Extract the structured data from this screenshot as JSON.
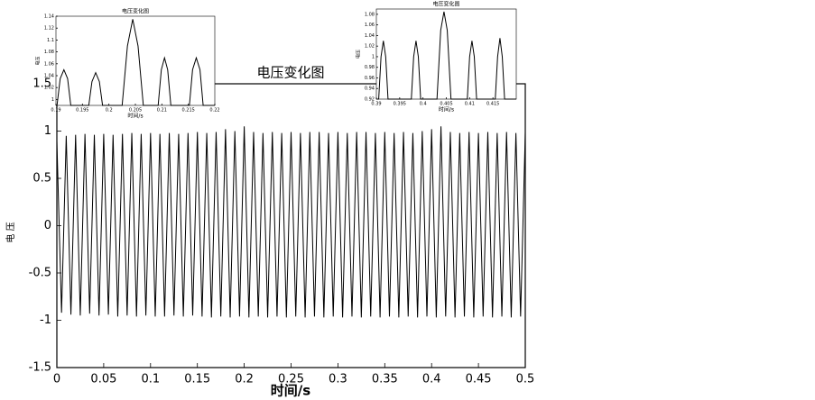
{
  "chart_data": [
    {
      "type": "line",
      "title": "电压变化图",
      "xlabel": "时间/s",
      "ylabel": "电 压",
      "color": "#000000",
      "xlim": [
        0,
        0.5
      ],
      "ylim": [
        -1.5,
        1.5
      ],
      "xticks": [
        0,
        0.05,
        0.1,
        0.15,
        0.2,
        0.25,
        0.3,
        0.35,
        0.4,
        0.45,
        0.5
      ],
      "yticks": [
        -1.5,
        -1,
        -0.5,
        0,
        0.5,
        1,
        1.5
      ],
      "x": [
        0,
        0.005,
        0.01,
        0.015,
        0.02,
        0.025,
        0.03,
        0.035,
        0.04,
        0.045,
        0.05,
        0.055,
        0.06,
        0.065,
        0.07,
        0.075,
        0.08,
        0.085,
        0.09,
        0.095,
        0.1,
        0.105,
        0.11,
        0.115,
        0.12,
        0.125,
        0.13,
        0.135,
        0.14,
        0.145,
        0.15,
        0.155,
        0.16,
        0.165,
        0.17,
        0.175,
        0.18,
        0.185,
        0.19,
        0.195,
        0.2,
        0.205,
        0.21,
        0.215,
        0.22,
        0.225,
        0.23,
        0.235,
        0.24,
        0.245,
        0.25,
        0.255,
        0.26,
        0.265,
        0.27,
        0.275,
        0.28,
        0.285,
        0.29,
        0.295,
        0.3,
        0.305,
        0.31,
        0.315,
        0.32,
        0.325,
        0.33,
        0.335,
        0.34,
        0.345,
        0.35,
        0.355,
        0.36,
        0.365,
        0.37,
        0.375,
        0.38,
        0.385,
        0.39,
        0.395,
        0.4,
        0.405,
        0.41,
        0.415,
        0.42,
        0.425,
        0.43,
        0.435,
        0.44,
        0.445,
        0.45,
        0.455,
        0.46,
        0.465,
        0.47,
        0.475,
        0.48,
        0.485,
        0.49,
        0.495,
        0.5
      ],
      "values": [
        0.9,
        -0.92,
        0.95,
        -0.94,
        0.96,
        -0.95,
        0.97,
        -0.93,
        0.96,
        -0.95,
        0.97,
        -0.94,
        0.96,
        -0.96,
        0.97,
        -0.95,
        0.98,
        -0.96,
        0.97,
        -0.95,
        0.98,
        -0.96,
        0.97,
        -0.96,
        0.98,
        -0.95,
        0.97,
        -0.96,
        0.98,
        -0.95,
        0.99,
        -0.96,
        0.98,
        -0.97,
        0.99,
        -0.96,
        1.02,
        -0.97,
        1.0,
        -0.96,
        1.05,
        -0.97,
        0.99,
        -0.96,
        0.98,
        -0.97,
        0.99,
        -0.96,
        0.98,
        -0.97,
        0.99,
        -0.96,
        0.98,
        -0.97,
        0.99,
        -0.96,
        0.99,
        -0.97,
        0.98,
        -0.96,
        0.99,
        -0.97,
        0.98,
        -0.96,
        0.99,
        -0.97,
        0.99,
        -0.96,
        0.98,
        -0.97,
        0.99,
        -0.96,
        0.98,
        -0.97,
        0.99,
        -0.96,
        0.98,
        -0.97,
        1.0,
        -0.96,
        1.02,
        -0.97,
        1.05,
        -0.96,
        0.99,
        -0.97,
        0.98,
        -0.96,
        0.99,
        -0.97,
        0.98,
        -0.96,
        0.99,
        -0.97,
        0.98,
        -0.96,
        0.99,
        -0.97,
        0.98,
        -0.96,
        0.99
      ]
    },
    {
      "type": "line",
      "title": "电压变化图",
      "xlabel": "时间/s",
      "ylabel": "电压",
      "color": "#000000",
      "xlim": [
        0.19,
        0.22
      ],
      "ylim": [
        0.99,
        1.14
      ],
      "xticks": [
        0.19,
        0.195,
        0.2,
        0.205,
        0.21,
        0.215,
        0.22
      ],
      "yticks": [
        1,
        1.02,
        1.04,
        1.06,
        1.08,
        1.1,
        1.12,
        1.14
      ],
      "x": [
        0.19,
        0.1902,
        0.1908,
        0.1915,
        0.1922,
        0.1928,
        0.1962,
        0.1968,
        0.1975,
        0.1982,
        0.1988,
        0.2025,
        0.2035,
        0.2045,
        0.2055,
        0.2065,
        0.2093,
        0.2099,
        0.2105,
        0.2111,
        0.2117,
        0.2152,
        0.2158,
        0.2165,
        0.2172,
        0.2178,
        0.22
      ],
      "values": [
        0.99,
        0.99,
        1.035,
        1.05,
        1.035,
        0.99,
        0.99,
        1.03,
        1.045,
        1.03,
        0.99,
        0.99,
        1.09,
        1.135,
        1.09,
        0.99,
        0.99,
        1.05,
        1.07,
        1.05,
        0.99,
        0.99,
        1.05,
        1.07,
        1.05,
        0.99,
        0.99
      ]
    },
    {
      "type": "line",
      "title": "电压变化图",
      "xlabel": "时间/s",
      "ylabel": "电压",
      "color": "#000000",
      "xlim": [
        0.39,
        0.42
      ],
      "ylim": [
        0.92,
        1.09
      ],
      "xticks": [
        0.39,
        0.395,
        0.4,
        0.405,
        0.41,
        0.415
      ],
      "yticks": [
        0.92,
        0.94,
        0.96,
        0.98,
        1,
        1.02,
        1.04,
        1.06,
        1.08
      ],
      "x": [
        0.39,
        0.3905,
        0.391,
        0.3915,
        0.392,
        0.3925,
        0.3975,
        0.398,
        0.3985,
        0.399,
        0.3995,
        0.403,
        0.4038,
        0.4045,
        0.4052,
        0.406,
        0.4095,
        0.41,
        0.4105,
        0.411,
        0.4115,
        0.4155,
        0.416,
        0.4165,
        0.417,
        0.4175,
        0.42
      ],
      "values": [
        0.92,
        0.92,
        1.0,
        1.03,
        1.0,
        0.92,
        0.92,
        1.0,
        1.03,
        1.0,
        0.92,
        0.92,
        1.05,
        1.085,
        1.05,
        0.92,
        0.92,
        1.0,
        1.03,
        1.0,
        0.92,
        0.92,
        1.0,
        1.035,
        1.0,
        0.92,
        0.92
      ]
    }
  ]
}
